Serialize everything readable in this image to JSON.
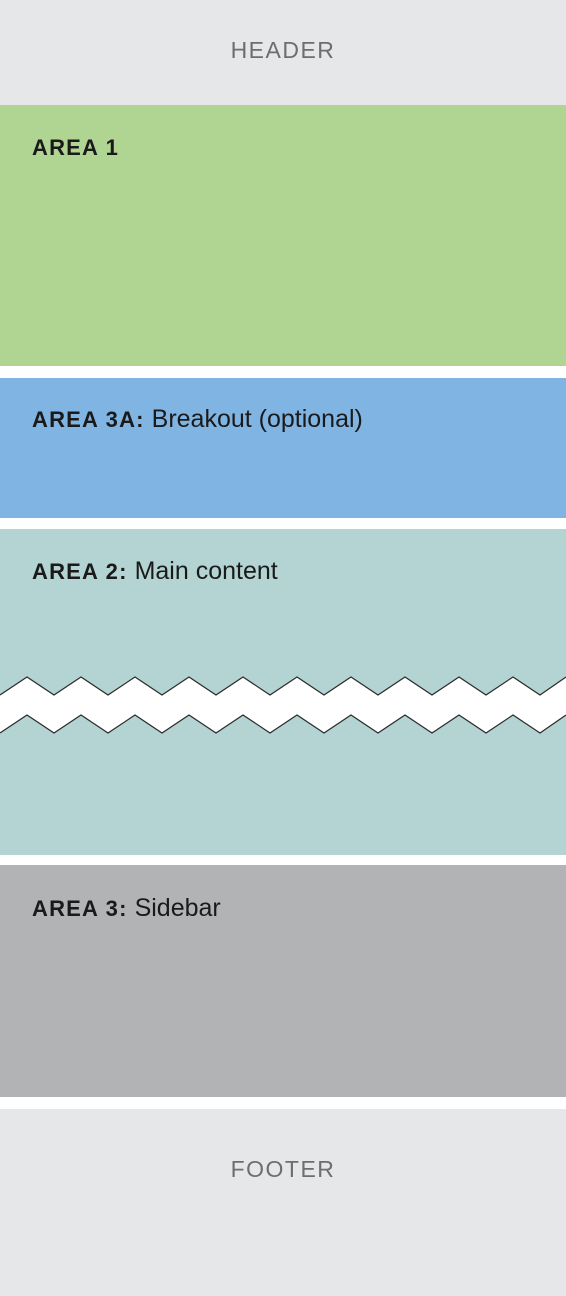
{
  "header": {
    "label": "HEADER"
  },
  "area1": {
    "key": "AREA 1",
    "desc": ""
  },
  "area3a": {
    "key": "AREA 3A:",
    "desc": "Breakout (optional)"
  },
  "area2": {
    "key": "AREA 2:",
    "desc": "Main content"
  },
  "area3": {
    "key": "AREA 3:",
    "desc": "Sidebar"
  },
  "footer": {
    "label": "FOOTER"
  },
  "colors": {
    "header_footer": "#e6e7e8",
    "area1": "#b0d593",
    "area3a": "#80b4e2",
    "area2": "#b3d4d3",
    "area3": "#b2b3b5"
  }
}
